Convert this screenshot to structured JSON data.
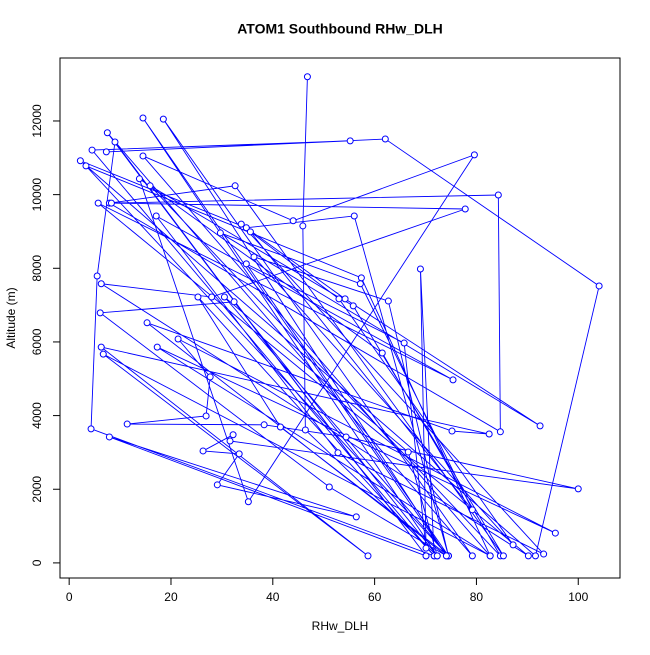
{
  "chart_data": {
    "type": "line",
    "title": "ATOM1 Southbound RHw_DLH",
    "x_label": "RHw_DLH",
    "y_label": "Altitude (m)",
    "color": "#0000ff",
    "markers": true,
    "grid": false,
    "xlim": [
      -1.8,
      108.2
    ],
    "ylim": [
      -410,
      13710
    ],
    "xticks": [
      0,
      20,
      40,
      60,
      80,
      100
    ],
    "yticks": [
      0,
      2000,
      4000,
      6000,
      8000,
      10000,
      12000
    ],
    "x": [
      46.8,
      45.9,
      46.4,
      72.3,
      14.5,
      74.1,
      18.5,
      79.2,
      7.5,
      70.1,
      9.0,
      5.5,
      4.3,
      71.7,
      4.5,
      55.2,
      7.3,
      62.1,
      104.1,
      91.6,
      2.2,
      34.8,
      56.0,
      74.5,
      3.3,
      57.4,
      82.7,
      14.5,
      44.0,
      79.6,
      35.2,
      13.8,
      61.5,
      84.7,
      15.9,
      55.8,
      85.3,
      32.6,
      7.9,
      84.7,
      84.3,
      8.3,
      77.8,
      28.0,
      6.3,
      90.2,
      5.7,
      75.4,
      17.1,
      52.8,
      93.2,
      33.8,
      54.2,
      92.5,
      29.7,
      57.2,
      79.2,
      35.6,
      53.0,
      87.2,
      36.3,
      62.7,
      74.5,
      34.8,
      65.8,
      70.1,
      69.0,
      71.7,
      25.3,
      41.5,
      74.5,
      30.5,
      66.6,
      72.3,
      32.4,
      6.1,
      51.1,
      74.1,
      15.3,
      75.2,
      82.5,
      6.3,
      58.7,
      6.7,
      82.7,
      17.3,
      95.5,
      21.4,
      27.7,
      26.9,
      11.4,
      38.3,
      54.4,
      100.0,
      31.6,
      32.2,
      26.3,
      33.4,
      29.1,
      56.4,
      7.9,
      70.1
    ],
    "values": [
      13200,
      9150,
      3610,
      190,
      12080,
      190,
      12050,
      190,
      11680,
      190,
      11430,
      7790,
      3640,
      190,
      11210,
      11460,
      11160,
      11510,
      7520,
      190,
      10920,
      9100,
      9420,
      190,
      10780,
      7740,
      190,
      11050,
      9290,
      11080,
      1660,
      10430,
      5700,
      190,
      10240,
      6980,
      190,
      10240,
      9770,
      3560,
      9990,
      9770,
      9610,
      7220,
      7580,
      190,
      9770,
      4970,
      9420,
      2990,
      240,
      9200,
      7170,
      3720,
      8960,
      7580,
      1440,
      8990,
      7170,
      490,
      8310,
      7110,
      190,
      8120,
      5970,
      400,
      7980,
      190,
      7220,
      3690,
      190,
      7220,
      3010,
      190,
      7090,
      6790,
      2060,
      190,
      6520,
      3580,
      3500,
      5860,
      190,
      5670,
      190,
      5860,
      810,
      6080,
      5050,
      3990,
      3770,
      3750,
      3420,
      2010,
      3310,
      3480,
      3040,
      2960,
      2120,
      1250,
      3420,
      190
    ]
  }
}
